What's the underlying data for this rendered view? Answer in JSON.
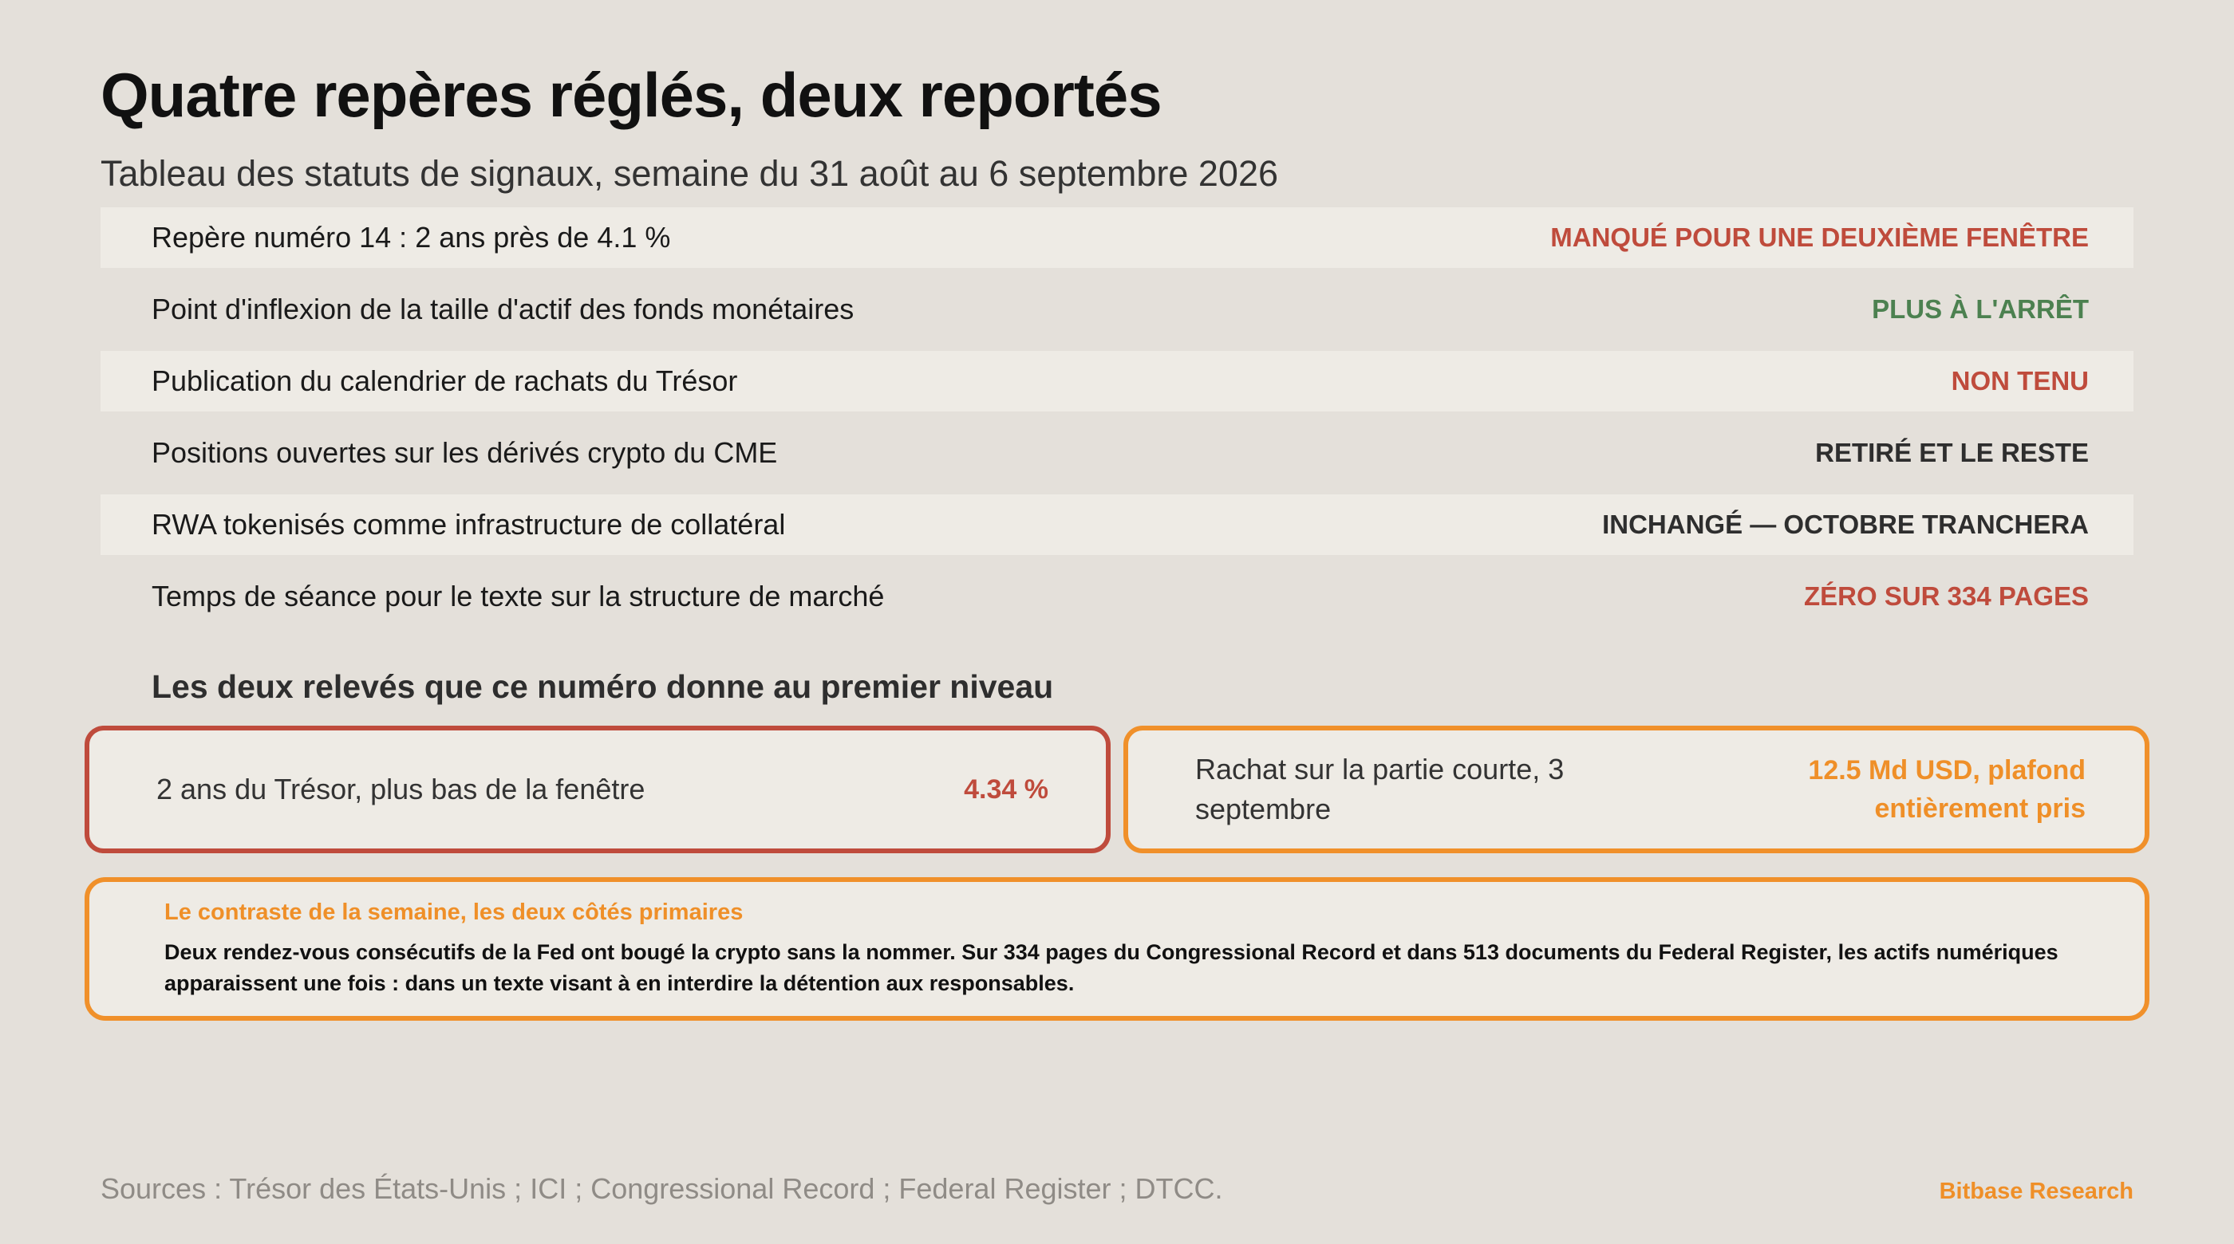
{
  "header": {
    "title": "Quatre repères réglés, deux reportés",
    "subtitle": "Tableau des statuts de signaux, semaine du 31 août au 6 septembre 2026"
  },
  "colors": {
    "red": "#bf4b3c",
    "green": "#4c8150",
    "dark": "#2e2e2e",
    "orange": "#ef8f28",
    "background": "#e4e0da",
    "shaded_row": "#eeebe5"
  },
  "rows": [
    {
      "label": "Repère numéro 14 : 2 ans près de 4.1 %",
      "status": "MANQUÉ POUR UNE DEUXIÈME FENÊTRE",
      "tone": "red"
    },
    {
      "label": "Point d'inflexion de la taille d'actif des fonds monétaires",
      "status": "PLUS À L'ARRÊT",
      "tone": "green"
    },
    {
      "label": "Publication du calendrier de rachats du Trésor",
      "status": "NON TENU",
      "tone": "red"
    },
    {
      "label": "Positions ouvertes sur les dérivés crypto du CME",
      "status": "RETIRÉ ET LE RESTE",
      "tone": "dark"
    },
    {
      "label": "RWA tokenisés comme infrastructure de collatéral",
      "status": "INCHANGÉ — OCTOBRE TRANCHERA",
      "tone": "dark"
    },
    {
      "label": "Temps de séance pour le texte sur la structure de marché",
      "status": "ZÉRO SUR 334 PAGES",
      "tone": "red"
    }
  ],
  "section": {
    "heading": "Les deux relevés que ce numéro donne au premier niveau"
  },
  "cards": [
    {
      "label": "2 ans du Trésor, plus bas de la fenêtre",
      "value": "4.34 %"
    },
    {
      "label": "Rachat sur la partie courte, 3 septembre",
      "value": "12.5 Md USD, plafond entièrement pris"
    }
  ],
  "callout": {
    "title": "Le contraste de la semaine, les deux côtés primaires",
    "body": "Deux rendez-vous consécutifs de la Fed ont bougé la crypto sans la nommer. Sur 334 pages du Congressional Record et dans 513 documents du Federal Register, les actifs numériques apparaissent une fois : dans un texte visant à en interdire la détention aux responsables."
  },
  "footer": {
    "sources": "Sources : Trésor des États-Unis ; ICI ; Congressional Record ; Federal Register ; DTCC.",
    "brand": "Bitbase Research"
  }
}
